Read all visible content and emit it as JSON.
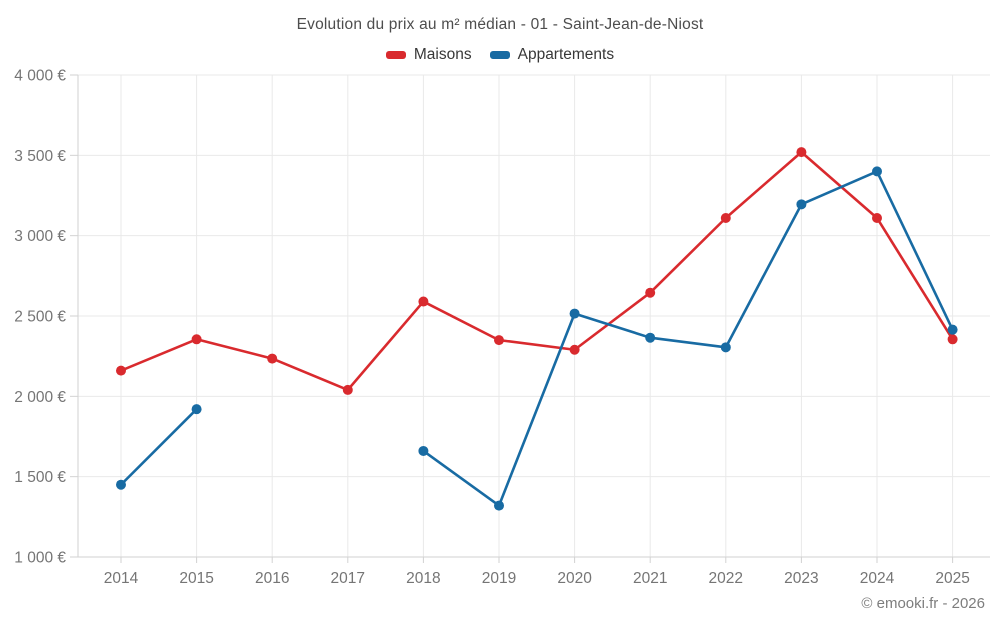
{
  "header": {
    "title": "Evolution du prix au m² médian - 01 - Saint-Jean-de-Niost"
  },
  "footer": {
    "credit": "© emooki.fr - 2026"
  },
  "style": {
    "background": "#ffffff",
    "grid_color": "#e9e9e9",
    "axis_color": "#d2d2d2",
    "tick_label_color": "#757575",
    "title_color": "#4d4d4d",
    "legend_text_color": "#383838"
  },
  "chart_data": {
    "type": "line",
    "title": "Evolution du prix au m² médian - 01 - Saint-Jean-de-Niost",
    "x": [
      2014,
      2015,
      2016,
      2017,
      2018,
      2019,
      2020,
      2021,
      2022,
      2023,
      2024,
      2025
    ],
    "x_tick_labels": [
      "2014",
      "2015",
      "2016",
      "2017",
      "2018",
      "2019",
      "2020",
      "2021",
      "2022",
      "2023",
      "2024",
      "2025"
    ],
    "series": [
      {
        "name": "Maisons",
        "color": "#d92a2e",
        "values": [
          2160,
          2355,
          2235,
          2040,
          2590,
          2350,
          2290,
          2645,
          3110,
          3520,
          3110,
          2355
        ]
      },
      {
        "name": "Appartements",
        "color": "#186ba3",
        "values": [
          1450,
          1920,
          null,
          null,
          1660,
          1320,
          2515,
          2365,
          2305,
          3195,
          3400,
          2415
        ]
      }
    ],
    "ylabel": "",
    "xlabel": "",
    "ylim": [
      1000,
      4000
    ],
    "y_ticks": [
      1000,
      1500,
      2000,
      2500,
      3000,
      3500,
      4000
    ],
    "y_tick_labels": [
      "1 000 €",
      "1 500 €",
      "2 000 €",
      "2 500 €",
      "3 000 €",
      "3 500 €",
      "4 000 €"
    ],
    "grid": true,
    "legend_position": "top",
    "note_gaps": "Appartements has no data for 2016 and 2017 (line gap)"
  }
}
